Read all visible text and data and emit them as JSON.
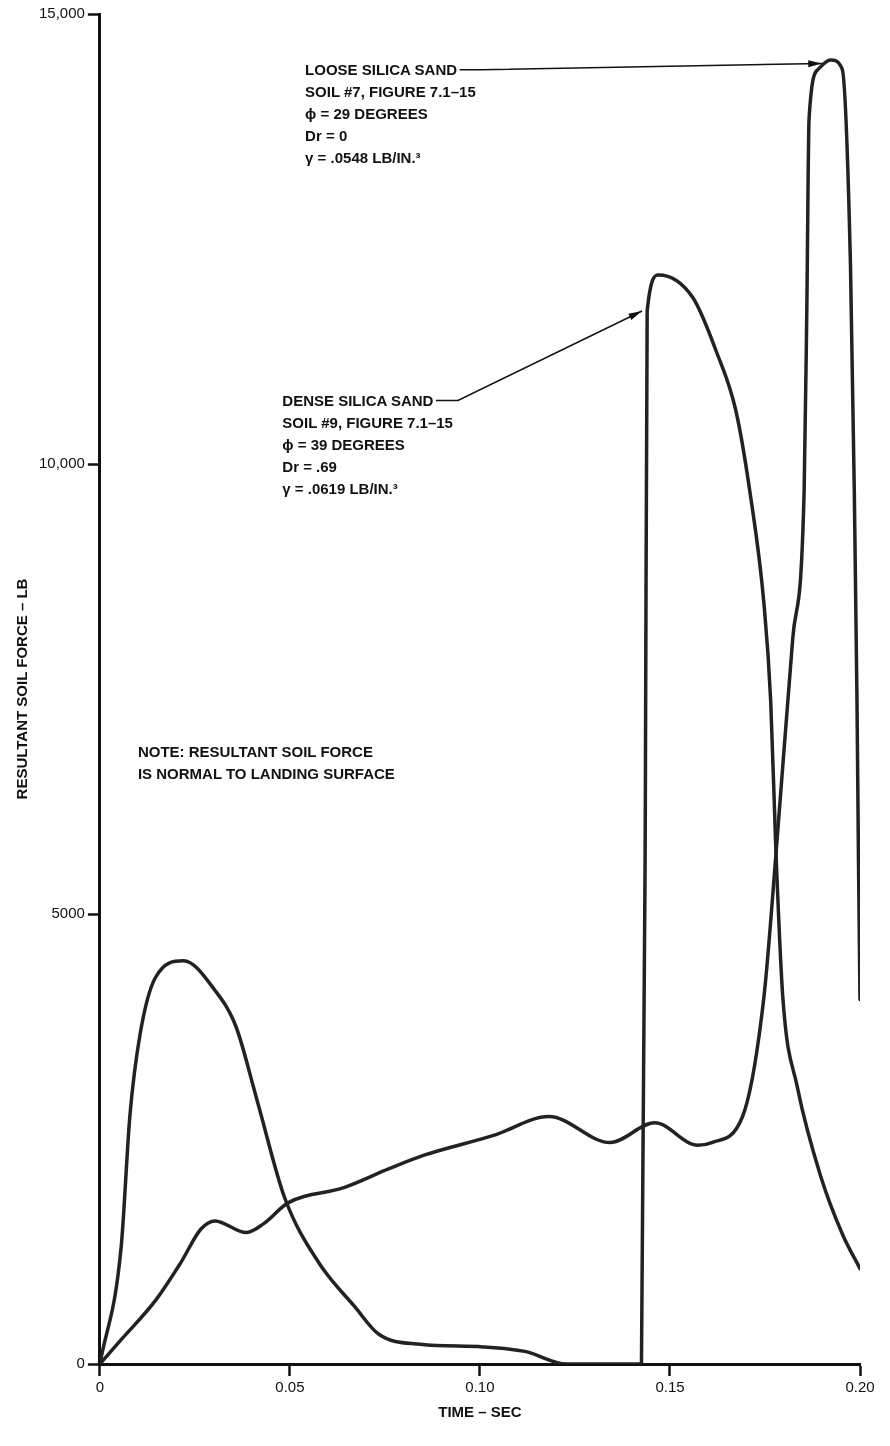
{
  "chart_data": {
    "type": "line",
    "xlabel": "TIME – SEC",
    "ylabel": "RESULTANT SOIL FORCE – LB",
    "xlim": [
      0,
      0.2
    ],
    "xticks": [
      0,
      0.05,
      {
        "value": 0.1,
        "label": "0.10"
      },
      0.15,
      {
        "value": 0.2,
        "label": "0.20"
      }
    ],
    "ylim": [
      0,
      15000
    ],
    "yticks": [
      0,
      5000,
      {
        "value": 10000,
        "label": "10,000"
      },
      {
        "value": 15000,
        "label": "15,000"
      }
    ],
    "grid": false,
    "legend": false,
    "marker": "none",
    "line_style": "solid",
    "series": [
      {
        "color": "#222222",
        "x": [
          0,
          0.0056,
          0.0079,
          0.0106,
          0.0147,
          0.022,
          0.0303,
          0.0358,
          0.0413,
          0.0486,
          0.0577,
          0.067,
          0.0734,
          0.0843,
          0.1008,
          0.1118,
          0.1228,
          0.1425,
          0.1435,
          0.144,
          0.147,
          0.156,
          0.1622,
          0.1673,
          0.171,
          0.1747,
          0.1765,
          0.1779,
          0.1797,
          0.1835,
          0.1897,
          0.1955,
          0.2
        ],
        "values": [
          0,
          1300,
          2760,
          3670,
          4300,
          4480,
          4150,
          3750,
          2940,
          1850,
          1120,
          640,
          330,
          220,
          190,
          140,
          0,
          0,
          6000,
          11700,
          12100,
          11850,
          11250,
          10600,
          9700,
          8460,
          7370,
          5670,
          4070,
          3080,
          2080,
          1430,
          1060
        ]
      },
      {
        "color": "#222222",
        "x": [
          0,
          0.0056,
          0.0147,
          0.0212,
          0.0266,
          0.0303,
          0.0385,
          0.0431,
          0.0495,
          0.0642,
          0.0761,
          0.0853,
          0.1036,
          0.1182,
          0.1342,
          0.146,
          0.1573,
          0.161,
          0.1691,
          0.1747,
          0.1779,
          0.1823,
          0.1853,
          0.186,
          0.1866,
          0.1891,
          0.1922,
          0.1953,
          0.1975,
          0.1985,
          0.1992,
          0.1996,
          0.2
        ],
        "values": [
          0,
          270,
          710,
          1120,
          1500,
          1590,
          1460,
          1560,
          1790,
          1960,
          2170,
          2320,
          2540,
          2750,
          2460,
          2680,
          2430,
          2460,
          2750,
          4070,
          5670,
          8060,
          9700,
          11700,
          13840,
          14390,
          14490,
          14390,
          12200,
          9700,
          7400,
          5600,
          4050
        ]
      }
    ],
    "annotations": [
      {
        "text": "LOOSE SILICA SAND\nSOIL #7, FIGURE 7.1–15\nϕ = 29 DEGREES\nDr = 0\nγ = .0548 LB/IN.³",
        "x": 0.191,
        "y": 14450
      },
      {
        "text": "DENSE SILICA SAND\nSOIL #9, FIGURE 7.1–15\nϕ = 39 DEGREES\nDr = .69\nγ = .0619 LB/IN.³",
        "x": 0.1437,
        "y": 11700
      },
      "NOTE: RESULTANT SOIL FORCE\nIS NORMAL TO LANDING SURFACE"
    ]
  }
}
